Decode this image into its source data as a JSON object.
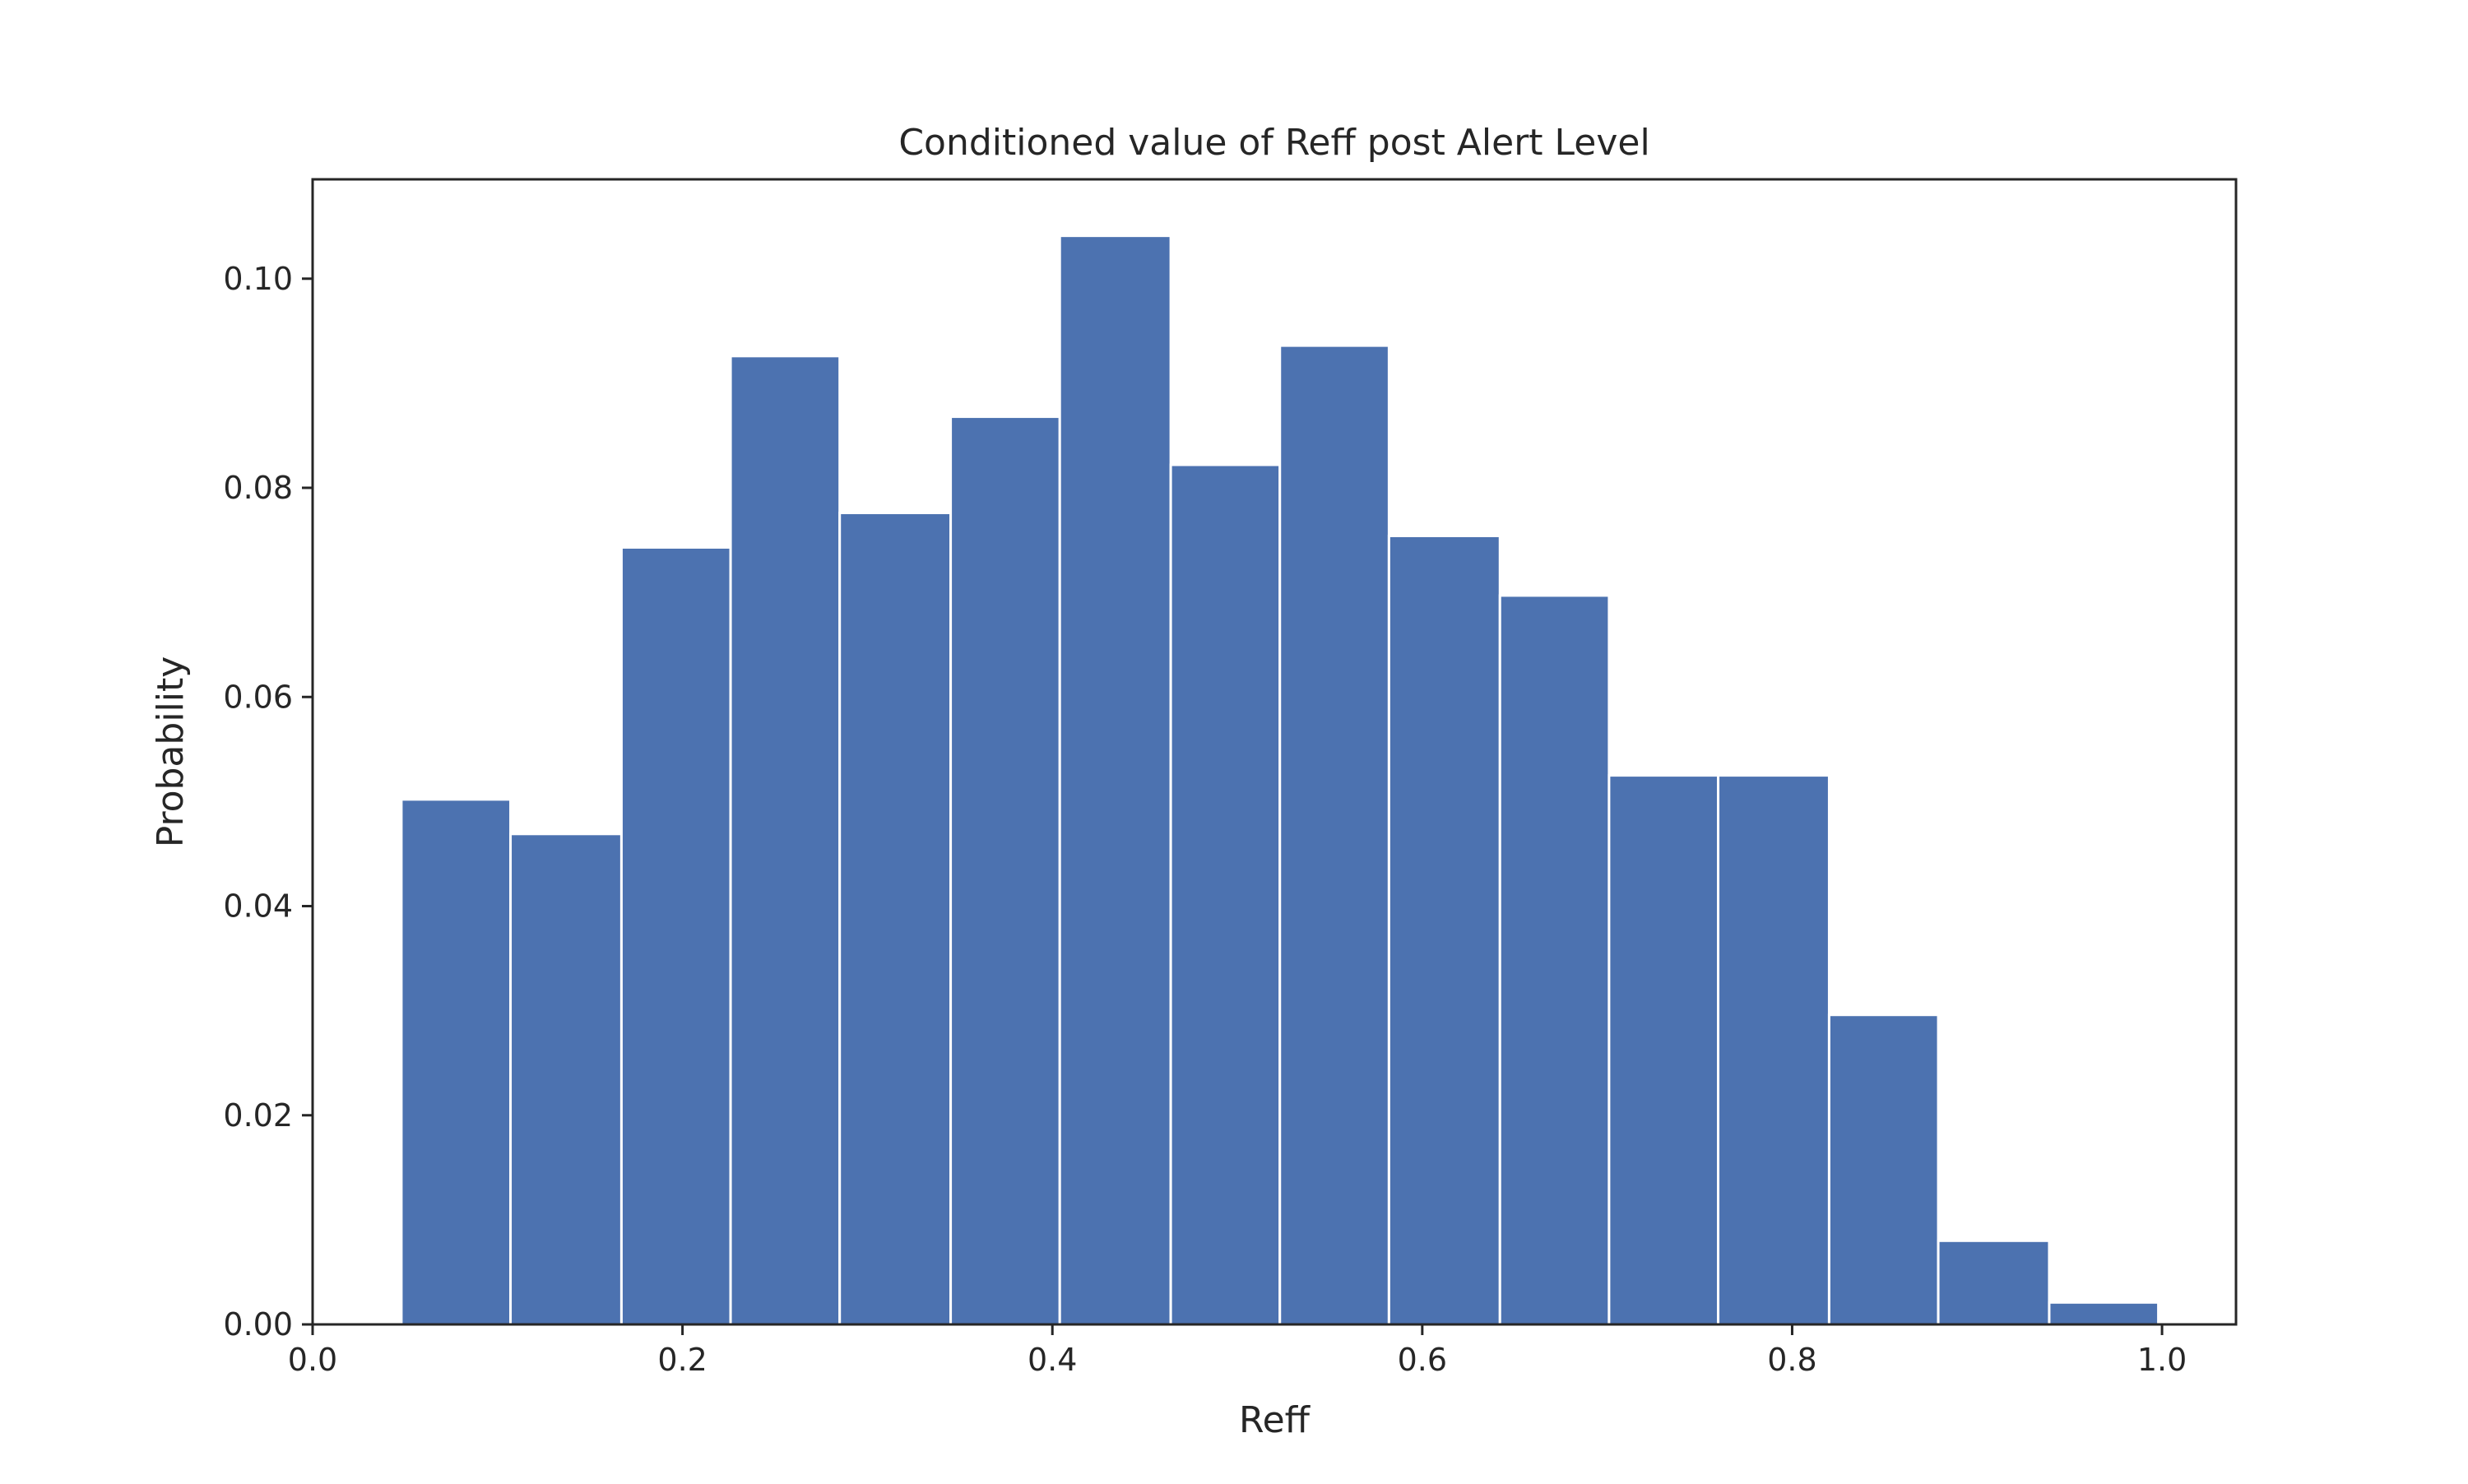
{
  "chart_data": {
    "type": "bar",
    "title": "Conditioned value of Reff post Alert Level",
    "xlabel": "Reff",
    "ylabel": "Probability",
    "xlim": [
      0.0,
      1.04
    ],
    "ylim": [
      0.0,
      0.1095
    ],
    "xticks": [
      0.0,
      0.2,
      0.4,
      0.6,
      0.8,
      1.0
    ],
    "xtick_labels": [
      "0.0",
      "0.2",
      "0.4",
      "0.6",
      "0.8",
      "1.0"
    ],
    "yticks": [
      0.0,
      0.02,
      0.04,
      0.06,
      0.08,
      0.1
    ],
    "ytick_labels": [
      "0.00",
      "0.02",
      "0.04",
      "0.06",
      "0.08",
      "0.10"
    ],
    "grid": false,
    "legend": "none",
    "bar_color": "#4c72b0",
    "bins": [
      {
        "start": 0.048,
        "end": 0.107,
        "value": 0.0502
      },
      {
        "start": 0.107,
        "end": 0.167,
        "value": 0.0469
      },
      {
        "start": 0.167,
        "end": 0.226,
        "value": 0.0743
      },
      {
        "start": 0.226,
        "end": 0.285,
        "value": 0.0926
      },
      {
        "start": 0.285,
        "end": 0.345,
        "value": 0.0776
      },
      {
        "start": 0.345,
        "end": 0.404,
        "value": 0.0868
      },
      {
        "start": 0.404,
        "end": 0.464,
        "value": 0.1041
      },
      {
        "start": 0.464,
        "end": 0.523,
        "value": 0.0822
      },
      {
        "start": 0.523,
        "end": 0.582,
        "value": 0.0936
      },
      {
        "start": 0.582,
        "end": 0.642,
        "value": 0.0754
      },
      {
        "start": 0.642,
        "end": 0.701,
        "value": 0.0697
      },
      {
        "start": 0.701,
        "end": 0.76,
        "value": 0.0525
      },
      {
        "start": 0.76,
        "end": 0.82,
        "value": 0.0525
      },
      {
        "start": 0.82,
        "end": 0.879,
        "value": 0.0296
      },
      {
        "start": 0.879,
        "end": 0.939,
        "value": 0.008
      },
      {
        "start": 0.939,
        "end": 0.998,
        "value": 0.0021
      }
    ]
  }
}
